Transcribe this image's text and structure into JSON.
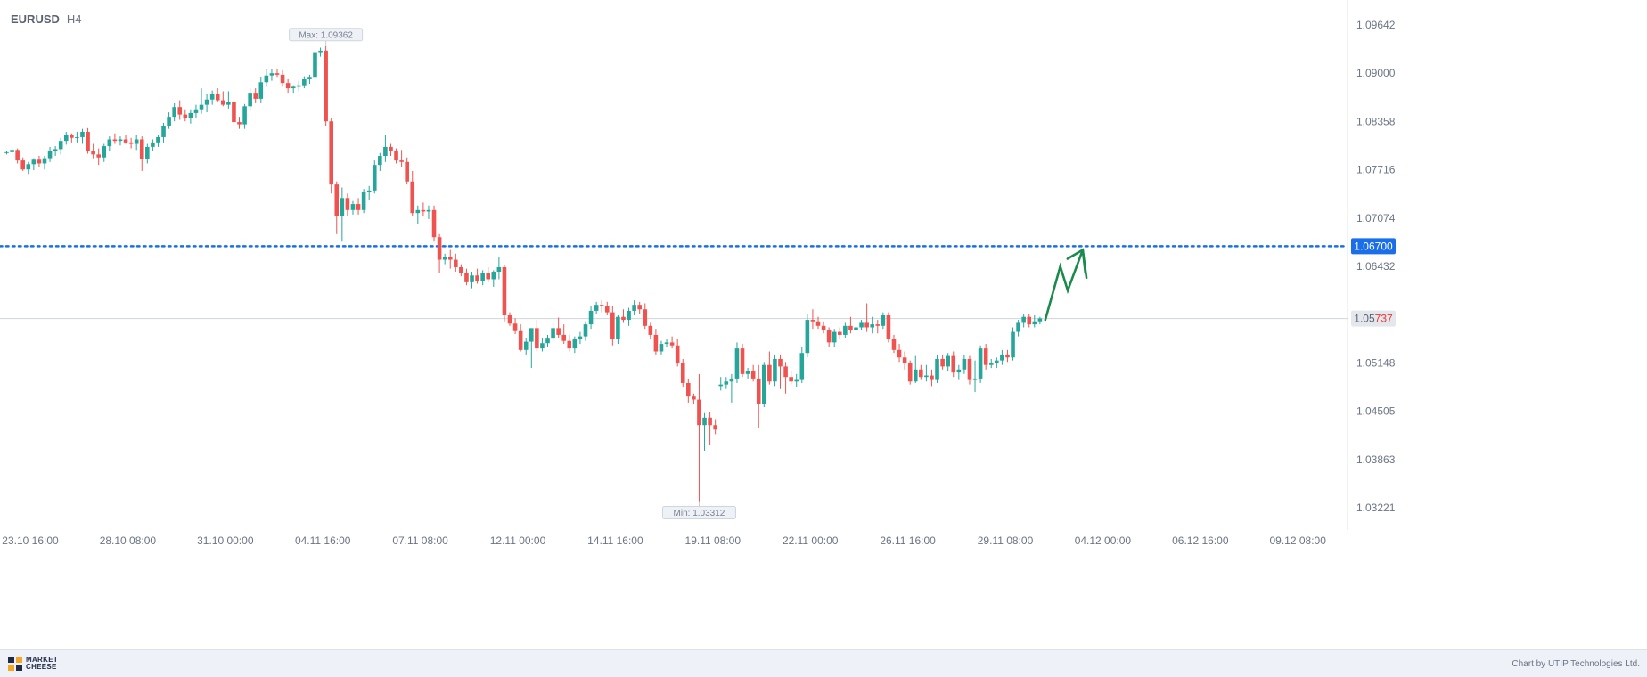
{
  "header": {
    "symbol": "EURUSD",
    "timeframe": "H4"
  },
  "footer": {
    "brand_line1": "MARKET",
    "brand_line2": "CHEESE",
    "credit": "Chart by UTIP Technologies Ltd."
  },
  "colors": {
    "up": "#26a69a",
    "down": "#ef5350",
    "target": "#1a6fe8",
    "arrow": "#1b8a4c",
    "current_line": "#cfd4dc"
  },
  "chart_data": {
    "type": "candlestick",
    "y_ticks": [
      "1.09642",
      "1.09000",
      "1.08358",
      "1.07716",
      "1.07074",
      "1.06432",
      "1.05148",
      "1.04505",
      "1.03863",
      "1.03221"
    ],
    "x_ticks": [
      "23.10 16:00",
      "28.10 08:00",
      "31.10 00:00",
      "04.11 16:00",
      "07.11 08:00",
      "12.11 00:00",
      "14.11 16:00",
      "19.11 08:00",
      "22.11 00:00",
      "26.11 16:00",
      "29.11 08:00",
      "04.12 00:00",
      "06.12 16:00",
      "09.12 08:00"
    ],
    "max_label": "Max: 1.09362",
    "min_label": "Min: 1.03312",
    "target_level": 1.067,
    "target_label": "1.06700",
    "current_price": 1.05737,
    "current_label_prefix": "1.05",
    "current_label_suffix": "737",
    "forecast_path": [
      [
        0,
        1.0572
      ],
      [
        2,
        1.0643
      ],
      [
        3,
        1.0611
      ],
      [
        5,
        1.0665
      ],
      [
        5.5,
        1.0628
      ]
    ],
    "candles": [
      [
        1.0794,
        1.0797,
        1.0792,
        1.0795
      ],
      [
        1.0795,
        1.0801,
        1.079,
        1.0798
      ],
      [
        1.0798,
        1.08,
        1.078,
        1.0784
      ],
      [
        1.0784,
        1.0788,
        1.077,
        1.0772
      ],
      [
        1.0772,
        1.0782,
        1.0766,
        1.0779
      ],
      [
        1.0779,
        1.0787,
        1.0771,
        1.0785
      ],
      [
        1.0785,
        1.079,
        1.0775,
        1.078
      ],
      [
        1.078,
        1.079,
        1.0772,
        1.0787
      ],
      [
        1.0787,
        1.0802,
        1.0782,
        1.0796
      ],
      [
        1.0796,
        1.0803,
        1.079,
        1.0799
      ],
      [
        1.0799,
        1.0814,
        1.0792,
        1.081
      ],
      [
        1.081,
        1.0822,
        1.0805,
        1.0818
      ],
      [
        1.0818,
        1.082,
        1.0808,
        1.0814
      ],
      [
        1.0814,
        1.0822,
        1.0808,
        1.0815
      ],
      [
        1.0815,
        1.0826,
        1.0806,
        1.0822
      ],
      [
        1.0822,
        1.0827,
        1.0793,
        1.0797
      ],
      [
        1.0797,
        1.0806,
        1.0787,
        1.0792
      ],
      [
        1.0792,
        1.08,
        1.0778,
        1.0788
      ],
      [
        1.0788,
        1.0806,
        1.0782,
        1.0803
      ],
      [
        1.0803,
        1.0816,
        1.0796,
        1.0812
      ],
      [
        1.0812,
        1.082,
        1.0806,
        1.081
      ],
      [
        1.081,
        1.0816,
        1.0804,
        1.0812
      ],
      [
        1.0812,
        1.0818,
        1.0806,
        1.0808
      ],
      [
        1.0808,
        1.0814,
        1.08,
        1.0806
      ],
      [
        1.0806,
        1.0818,
        1.0798,
        1.0812
      ],
      [
        1.0812,
        1.0816,
        1.077,
        1.0786
      ],
      [
        1.0786,
        1.0806,
        1.078,
        1.0802
      ],
      [
        1.0802,
        1.0812,
        1.0796,
        1.0808
      ],
      [
        1.0808,
        1.0818,
        1.0802,
        1.0815
      ],
      [
        1.0815,
        1.0834,
        1.0808,
        1.083
      ],
      [
        1.083,
        1.0848,
        1.0826,
        1.0842
      ],
      [
        1.0842,
        1.086,
        1.0836,
        1.0855
      ],
      [
        1.0855,
        1.0864,
        1.0838,
        1.0845
      ],
      [
        1.0845,
        1.0852,
        1.0836,
        1.084
      ],
      [
        1.084,
        1.0852,
        1.0833,
        1.0847
      ],
      [
        1.0847,
        1.0858,
        1.084,
        1.0852
      ],
      [
        1.0852,
        1.088,
        1.0846,
        1.0858
      ],
      [
        1.0858,
        1.0872,
        1.0848,
        1.0865
      ],
      [
        1.0865,
        1.0877,
        1.0858,
        1.0872
      ],
      [
        1.0872,
        1.088,
        1.0862,
        1.0864
      ],
      [
        1.0864,
        1.0876,
        1.0856,
        1.0858
      ],
      [
        1.0858,
        1.0876,
        1.0853,
        1.0862
      ],
      [
        1.0862,
        1.0868,
        1.083,
        1.0835
      ],
      [
        1.0835,
        1.0842,
        1.0826,
        1.0832
      ],
      [
        1.0832,
        1.0859,
        1.0826,
        1.0856
      ],
      [
        1.0856,
        1.088,
        1.085,
        1.0874
      ],
      [
        1.0874,
        1.088,
        1.086,
        1.0866
      ],
      [
        1.0866,
        1.0895,
        1.086,
        1.0888
      ],
      [
        1.0888,
        1.0905,
        1.0882,
        1.0897
      ],
      [
        1.0897,
        1.0905,
        1.089,
        1.09
      ],
      [
        1.09,
        1.0906,
        1.0894,
        1.0898
      ],
      [
        1.0898,
        1.0904,
        1.0882,
        1.0887
      ],
      [
        1.0887,
        1.0892,
        1.0874,
        1.088
      ],
      [
        1.088,
        1.0884,
        1.0874,
        1.0882
      ],
      [
        1.0882,
        1.089,
        1.0876,
        1.0884
      ],
      [
        1.0884,
        1.0896,
        1.088,
        1.0892
      ],
      [
        1.0892,
        1.0898,
        1.0886,
        1.0894
      ],
      [
        1.0894,
        1.0932,
        1.089,
        1.0928
      ],
      [
        1.0928,
        1.0934,
        1.0922,
        1.093
      ],
      [
        1.093,
        1.0936,
        1.083,
        1.0836
      ],
      [
        1.0836,
        1.084,
        1.074,
        1.0752
      ],
      [
        1.0752,
        1.0756,
        1.0686,
        1.071
      ],
      [
        1.071,
        1.0748,
        1.0676,
        1.0734
      ],
      [
        1.0734,
        1.074,
        1.071,
        1.0718
      ],
      [
        1.0718,
        1.073,
        1.0712,
        1.0726
      ],
      [
        1.0726,
        1.0734,
        1.0712,
        1.0718
      ],
      [
        1.0718,
        1.0746,
        1.0714,
        1.0742
      ],
      [
        1.0742,
        1.075,
        1.0732,
        1.0744
      ],
      [
        1.0744,
        1.0784,
        1.074,
        1.0778
      ],
      [
        1.0778,
        1.0794,
        1.077,
        1.079
      ],
      [
        1.079,
        1.0818,
        1.0782,
        1.0802
      ],
      [
        1.0802,
        1.0806,
        1.079,
        1.0796
      ],
      [
        1.0796,
        1.08,
        1.078,
        1.0784
      ],
      [
        1.0784,
        1.0798,
        1.0775,
        1.0782
      ],
      [
        1.0782,
        1.0788,
        1.0752,
        1.0756
      ],
      [
        1.0756,
        1.077,
        1.071,
        1.0714
      ],
      [
        1.0714,
        1.0724,
        1.07,
        1.0718
      ],
      [
        1.0718,
        1.0728,
        1.071,
        1.0716
      ],
      [
        1.0716,
        1.0724,
        1.0706,
        1.0718
      ],
      [
        1.0718,
        1.0724,
        1.0676,
        1.0682
      ],
      [
        1.0682,
        1.0686,
        1.0634,
        1.0652
      ],
      [
        1.0652,
        1.066,
        1.0646,
        1.0656
      ],
      [
        1.0656,
        1.0665,
        1.064,
        1.0652
      ],
      [
        1.0652,
        1.066,
        1.0636,
        1.0642
      ],
      [
        1.0642,
        1.0646,
        1.063,
        1.0634
      ],
      [
        1.0634,
        1.064,
        1.0618,
        1.0622
      ],
      [
        1.0622,
        1.0636,
        1.0614,
        1.0631
      ],
      [
        1.0631,
        1.064,
        1.062,
        1.0623
      ],
      [
        1.0623,
        1.0638,
        1.0618,
        1.0634
      ],
      [
        1.0634,
        1.0642,
        1.0622,
        1.0626
      ],
      [
        1.0626,
        1.0638,
        1.0616,
        1.0636
      ],
      [
        1.0636,
        1.0655,
        1.0626,
        1.0642
      ],
      [
        1.0642,
        1.0645,
        1.057,
        1.0578
      ],
      [
        1.0578,
        1.0582,
        1.0564,
        1.0567
      ],
      [
        1.0567,
        1.0574,
        1.0553,
        1.0557
      ],
      [
        1.0557,
        1.0566,
        1.053,
        1.0532
      ],
      [
        1.0532,
        1.0548,
        1.0526,
        1.0543
      ],
      [
        1.0543,
        1.0558,
        1.0508,
        1.0561
      ],
      [
        1.0561,
        1.0572,
        1.053,
        1.0534
      ],
      [
        1.0534,
        1.0548,
        1.053,
        1.0541
      ],
      [
        1.0541,
        1.0552,
        1.0536,
        1.0547
      ],
      [
        1.0547,
        1.057,
        1.0542,
        1.0561
      ],
      [
        1.0561,
        1.0575,
        1.0548,
        1.0552
      ],
      [
        1.0552,
        1.0566,
        1.054,
        1.0544
      ],
      [
        1.0544,
        1.0552,
        1.053,
        1.0534
      ],
      [
        1.0534,
        1.055,
        1.0528,
        1.0546
      ],
      [
        1.0546,
        1.0556,
        1.054,
        1.055
      ],
      [
        1.055,
        1.057,
        1.0544,
        1.0566
      ],
      [
        1.0566,
        1.059,
        1.056,
        1.0584
      ],
      [
        1.0584,
        1.0596,
        1.058,
        1.0592
      ],
      [
        1.0592,
        1.0598,
        1.0582,
        1.059
      ],
      [
        1.059,
        1.0596,
        1.0578,
        1.0582
      ],
      [
        1.0582,
        1.059,
        1.0538,
        1.0546
      ],
      [
        1.0546,
        1.0578,
        1.054,
        1.0576
      ],
      [
        1.0576,
        1.0586,
        1.0568,
        1.0572
      ],
      [
        1.0572,
        1.0588,
        1.0564,
        1.0584
      ],
      [
        1.0584,
        1.0598,
        1.0578,
        1.0592
      ],
      [
        1.0592,
        1.0596,
        1.058,
        1.0586
      ],
      [
        1.0586,
        1.0594,
        1.056,
        1.0564
      ],
      [
        1.0564,
        1.0568,
        1.0546,
        1.0552
      ],
      [
        1.0552,
        1.056,
        1.0526,
        1.053
      ],
      [
        1.053,
        1.0544,
        1.0526,
        1.054
      ],
      [
        1.054,
        1.0546,
        1.0536,
        1.0542
      ],
      [
        1.0542,
        1.055,
        1.0534,
        1.0538
      ],
      [
        1.0538,
        1.0546,
        1.051,
        1.0514
      ],
      [
        1.0514,
        1.052,
        1.0482,
        1.0488
      ],
      [
        1.0488,
        1.0494,
        1.0462,
        1.047
      ],
      [
        1.047,
        1.0474,
        1.046,
        1.0466
      ],
      [
        1.0466,
        1.05,
        1.0331,
        1.0432
      ],
      [
        1.0432,
        1.0448,
        1.0398,
        1.0442
      ],
      [
        1.0442,
        1.045,
        1.0406,
        1.0432
      ],
      [
        1.0432,
        1.044,
        1.042,
        1.0426
      ],
      [
        1.0484,
        1.0496,
        1.0478,
        1.0486
      ],
      [
        1.0486,
        1.0496,
        1.048,
        1.049
      ],
      [
        1.049,
        1.05,
        1.0462,
        1.0494
      ],
      [
        1.0494,
        1.0542,
        1.0488,
        1.0534
      ],
      [
        1.0534,
        1.054,
        1.0496,
        1.05
      ],
      [
        1.05,
        1.0508,
        1.0494,
        1.0504
      ],
      [
        1.0504,
        1.0512,
        1.049,
        1.0494
      ],
      [
        1.0494,
        1.0512,
        1.0428,
        1.046
      ],
      [
        1.046,
        1.0516,
        1.0456,
        1.0512
      ],
      [
        1.0512,
        1.053,
        1.0486,
        1.049
      ],
      [
        1.049,
        1.0526,
        1.0484,
        1.052
      ],
      [
        1.052,
        1.0526,
        1.048,
        1.051
      ],
      [
        1.051,
        1.0516,
        1.0474,
        1.0496
      ],
      [
        1.0496,
        1.0504,
        1.0486,
        1.049
      ],
      [
        1.049,
        1.05,
        1.0482,
        1.0492
      ],
      [
        1.0492,
        1.0536,
        1.0488,
        1.0528
      ],
      [
        1.0528,
        1.058,
        1.0522,
        1.0572
      ],
      [
        1.0572,
        1.0586,
        1.056,
        1.057
      ],
      [
        1.057,
        1.0576,
        1.056,
        1.0564
      ],
      [
        1.0564,
        1.057,
        1.0554,
        1.0558
      ],
      [
        1.0558,
        1.0562,
        1.0536,
        1.0542
      ],
      [
        1.0542,
        1.056,
        1.0536,
        1.0556
      ],
      [
        1.0556,
        1.0562,
        1.0546,
        1.0552
      ],
      [
        1.0552,
        1.0568,
        1.0548,
        1.0564
      ],
      [
        1.0564,
        1.0576,
        1.0554,
        1.0558
      ],
      [
        1.0558,
        1.057,
        1.055,
        1.0562
      ],
      [
        1.0562,
        1.0572,
        1.0558,
        1.0568
      ],
      [
        1.0568,
        1.0594,
        1.0556,
        1.0562
      ],
      [
        1.0562,
        1.0576,
        1.0554,
        1.0566
      ],
      [
        1.0566,
        1.0572,
        1.0554,
        1.0564
      ],
      [
        1.0564,
        1.0582,
        1.056,
        1.0578
      ],
      [
        1.0578,
        1.0582,
        1.0542,
        1.0546
      ],
      [
        1.0546,
        1.0552,
        1.0528,
        1.0532
      ],
      [
        1.0532,
        1.054,
        1.0516,
        1.0522
      ],
      [
        1.0522,
        1.053,
        1.0506,
        1.0514
      ],
      [
        1.0514,
        1.0518,
        1.0486,
        1.049
      ],
      [
        1.049,
        1.0524,
        1.0488,
        1.0506
      ],
      [
        1.0506,
        1.0512,
        1.0492,
        1.0496
      ],
      [
        1.0496,
        1.0512,
        1.049,
        1.0498
      ],
      [
        1.0498,
        1.0506,
        1.0484,
        1.0492
      ],
      [
        1.0492,
        1.0526,
        1.0488,
        1.052
      ],
      [
        1.052,
        1.0526,
        1.0506,
        1.051
      ],
      [
        1.051,
        1.0528,
        1.0504,
        1.0524
      ],
      [
        1.0524,
        1.053,
        1.0496,
        1.0502
      ],
      [
        1.0502,
        1.0512,
        1.0492,
        1.0506
      ],
      [
        1.0506,
        1.0526,
        1.05,
        1.052
      ],
      [
        1.052,
        1.0524,
        1.0486,
        1.0492
      ],
      [
        1.0492,
        1.0518,
        1.0476,
        1.0494
      ],
      [
        1.0494,
        1.0538,
        1.0488,
        1.0534
      ],
      [
        1.0534,
        1.054,
        1.0506,
        1.0512
      ],
      [
        1.0512,
        1.052,
        1.0508,
        1.0514
      ],
      [
        1.0514,
        1.0522,
        1.0508,
        1.0518
      ],
      [
        1.0518,
        1.0532,
        1.0512,
        1.0526
      ],
      [
        1.0526,
        1.0532,
        1.0516,
        1.0522
      ],
      [
        1.0522,
        1.0562,
        1.0518,
        1.0556
      ],
      [
        1.0556,
        1.0572,
        1.055,
        1.0568
      ],
      [
        1.0568,
        1.058,
        1.0562,
        1.0576
      ],
      [
        1.0576,
        1.058,
        1.0562,
        1.0566
      ],
      [
        1.0566,
        1.0578,
        1.0562,
        1.057
      ],
      [
        1.057,
        1.0576,
        1.0566,
        1.0574
      ]
    ]
  }
}
